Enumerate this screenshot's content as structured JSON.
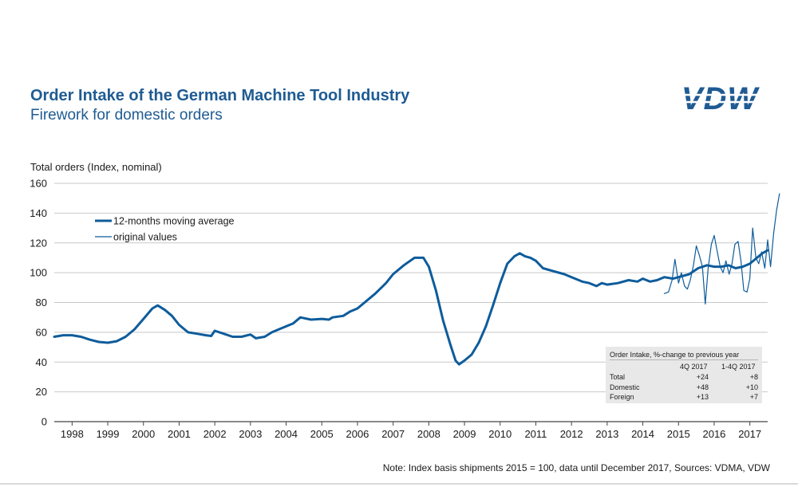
{
  "header": {
    "title": "Order Intake of the German Machine Tool Industry",
    "subtitle": "Firework for domestic orders",
    "logo_text": "VDW"
  },
  "colors": {
    "brand": "#1f5b93",
    "line": "#0e5c9b",
    "grid": "#c8c8c8"
  },
  "note": "Note: Index basis shipments  2015 = 100, data until December 2017, Sources: VDMA, VDW",
  "table": {
    "title": "Order Intake, %-change to previous year",
    "col_headers": [
      "4Q 2017",
      "1-4Q 2017"
    ],
    "rows": [
      {
        "label": "Total",
        "values": [
          "+24",
          "+8"
        ]
      },
      {
        "label": "Domestic",
        "values": [
          "+48",
          "+10"
        ]
      },
      {
        "label": "Foreign",
        "values": [
          "+13",
          "+7"
        ]
      }
    ]
  },
  "chart_data": {
    "type": "line",
    "ylabel": "Total orders (Index, nominal)",
    "ylim": [
      0,
      160
    ],
    "yticks": [
      0,
      20,
      40,
      60,
      80,
      100,
      120,
      140,
      160
    ],
    "xlim": [
      1997.5,
      2017.5
    ],
    "xticks": [
      "1998",
      "1999",
      "2000",
      "2001",
      "2002",
      "2003",
      "2004",
      "2005",
      "2006",
      "2007",
      "2008",
      "2009",
      "2010",
      "2011",
      "2012",
      "2013",
      "2014",
      "2015",
      "2016",
      "2017"
    ],
    "grid": "horizontal",
    "legend_position": "top-left",
    "series": [
      {
        "name": "12-months moving average",
        "style": "thick",
        "points": [
          [
            1997.5,
            57
          ],
          [
            1997.75,
            58
          ],
          [
            1998.0,
            58
          ],
          [
            1998.25,
            57
          ],
          [
            1998.5,
            55
          ],
          [
            1998.75,
            53.5
          ],
          [
            1999.0,
            53
          ],
          [
            1999.25,
            54
          ],
          [
            1999.5,
            57
          ],
          [
            1999.75,
            62
          ],
          [
            2000.0,
            69
          ],
          [
            2000.25,
            76
          ],
          [
            2000.4,
            78
          ],
          [
            2000.6,
            75
          ],
          [
            2000.8,
            71
          ],
          [
            2001.0,
            65
          ],
          [
            2001.25,
            60
          ],
          [
            2001.5,
            59
          ],
          [
            2001.75,
            58
          ],
          [
            2001.9,
            57.5
          ],
          [
            2002.0,
            61
          ],
          [
            2002.25,
            59
          ],
          [
            2002.5,
            57
          ],
          [
            2002.75,
            57
          ],
          [
            2003.0,
            58.5
          ],
          [
            2003.15,
            56
          ],
          [
            2003.4,
            57
          ],
          [
            2003.6,
            60
          ],
          [
            2003.9,
            63
          ],
          [
            2004.2,
            66
          ],
          [
            2004.4,
            70
          ],
          [
            2004.7,
            68.5
          ],
          [
            2005.0,
            69
          ],
          [
            2005.2,
            68.5
          ],
          [
            2005.3,
            70
          ],
          [
            2005.6,
            71
          ],
          [
            2005.8,
            74
          ],
          [
            2006.0,
            76
          ],
          [
            2006.2,
            80
          ],
          [
            2006.5,
            86
          ],
          [
            2006.8,
            93
          ],
          [
            2007.0,
            99
          ],
          [
            2007.3,
            105
          ],
          [
            2007.6,
            110
          ],
          [
            2007.85,
            110
          ],
          [
            2008.0,
            104
          ],
          [
            2008.2,
            88
          ],
          [
            2008.4,
            68
          ],
          [
            2008.6,
            52
          ],
          [
            2008.75,
            41
          ],
          [
            2008.85,
            38.5
          ],
          [
            2009.0,
            41
          ],
          [
            2009.2,
            45
          ],
          [
            2009.4,
            53
          ],
          [
            2009.6,
            64
          ],
          [
            2009.8,
            78
          ],
          [
            2010.0,
            93
          ],
          [
            2010.2,
            106
          ],
          [
            2010.4,
            111
          ],
          [
            2010.55,
            113
          ],
          [
            2010.7,
            111
          ],
          [
            2010.85,
            110
          ],
          [
            2011.0,
            108
          ],
          [
            2011.2,
            103
          ],
          [
            2011.5,
            101
          ],
          [
            2011.8,
            99
          ],
          [
            2012.0,
            97
          ],
          [
            2012.3,
            94
          ],
          [
            2012.5,
            93
          ],
          [
            2012.7,
            91
          ],
          [
            2012.85,
            93
          ],
          [
            2013.0,
            92
          ],
          [
            2013.3,
            93
          ],
          [
            2013.6,
            95
          ],
          [
            2013.85,
            94
          ],
          [
            2014.0,
            96
          ],
          [
            2014.2,
            94
          ],
          [
            2014.4,
            95
          ],
          [
            2014.6,
            97
          ],
          [
            2014.85,
            96
          ],
          [
            2015.0,
            97
          ],
          [
            2015.3,
            99
          ],
          [
            2015.55,
            103
          ],
          [
            2015.8,
            105
          ],
          [
            2016.0,
            104
          ],
          [
            2016.2,
            104
          ],
          [
            2016.4,
            105
          ],
          [
            2016.6,
            103
          ],
          [
            2016.8,
            104
          ],
          [
            2017.0,
            106
          ],
          [
            2017.2,
            110
          ],
          [
            2017.35,
            113
          ],
          [
            2017.5,
            115
          ]
        ]
      },
      {
        "name": "original values",
        "style": "thin",
        "points": [
          [
            2014.6,
            86
          ],
          [
            2014.72,
            87
          ],
          [
            2014.82,
            95
          ],
          [
            2014.9,
            109
          ],
          [
            2015.0,
            93
          ],
          [
            2015.08,
            100
          ],
          [
            2015.17,
            91
          ],
          [
            2015.25,
            89
          ],
          [
            2015.33,
            95
          ],
          [
            2015.42,
            105
          ],
          [
            2015.5,
            118
          ],
          [
            2015.58,
            112
          ],
          [
            2015.67,
            104
          ],
          [
            2015.75,
            79
          ],
          [
            2015.83,
            103
          ],
          [
            2015.92,
            119
          ],
          [
            2016.0,
            125
          ],
          [
            2016.08,
            115
          ],
          [
            2016.17,
            104
          ],
          [
            2016.25,
            100
          ],
          [
            2016.33,
            108
          ],
          [
            2016.42,
            99
          ],
          [
            2016.5,
            106
          ],
          [
            2016.58,
            119
          ],
          [
            2016.67,
            121
          ],
          [
            2016.75,
            108
          ],
          [
            2016.83,
            88
          ],
          [
            2016.92,
            87
          ],
          [
            2017.0,
            96
          ],
          [
            2017.08,
            130
          ],
          [
            2017.17,
            110
          ],
          [
            2017.25,
            106
          ],
          [
            2017.33,
            114
          ],
          [
            2017.42,
            103
          ],
          [
            2017.5,
            122
          ],
          [
            2017.58,
            104
          ],
          [
            2017.67,
            127
          ],
          [
            2017.75,
            142
          ],
          [
            2017.83,
            153
          ]
        ]
      }
    ]
  }
}
